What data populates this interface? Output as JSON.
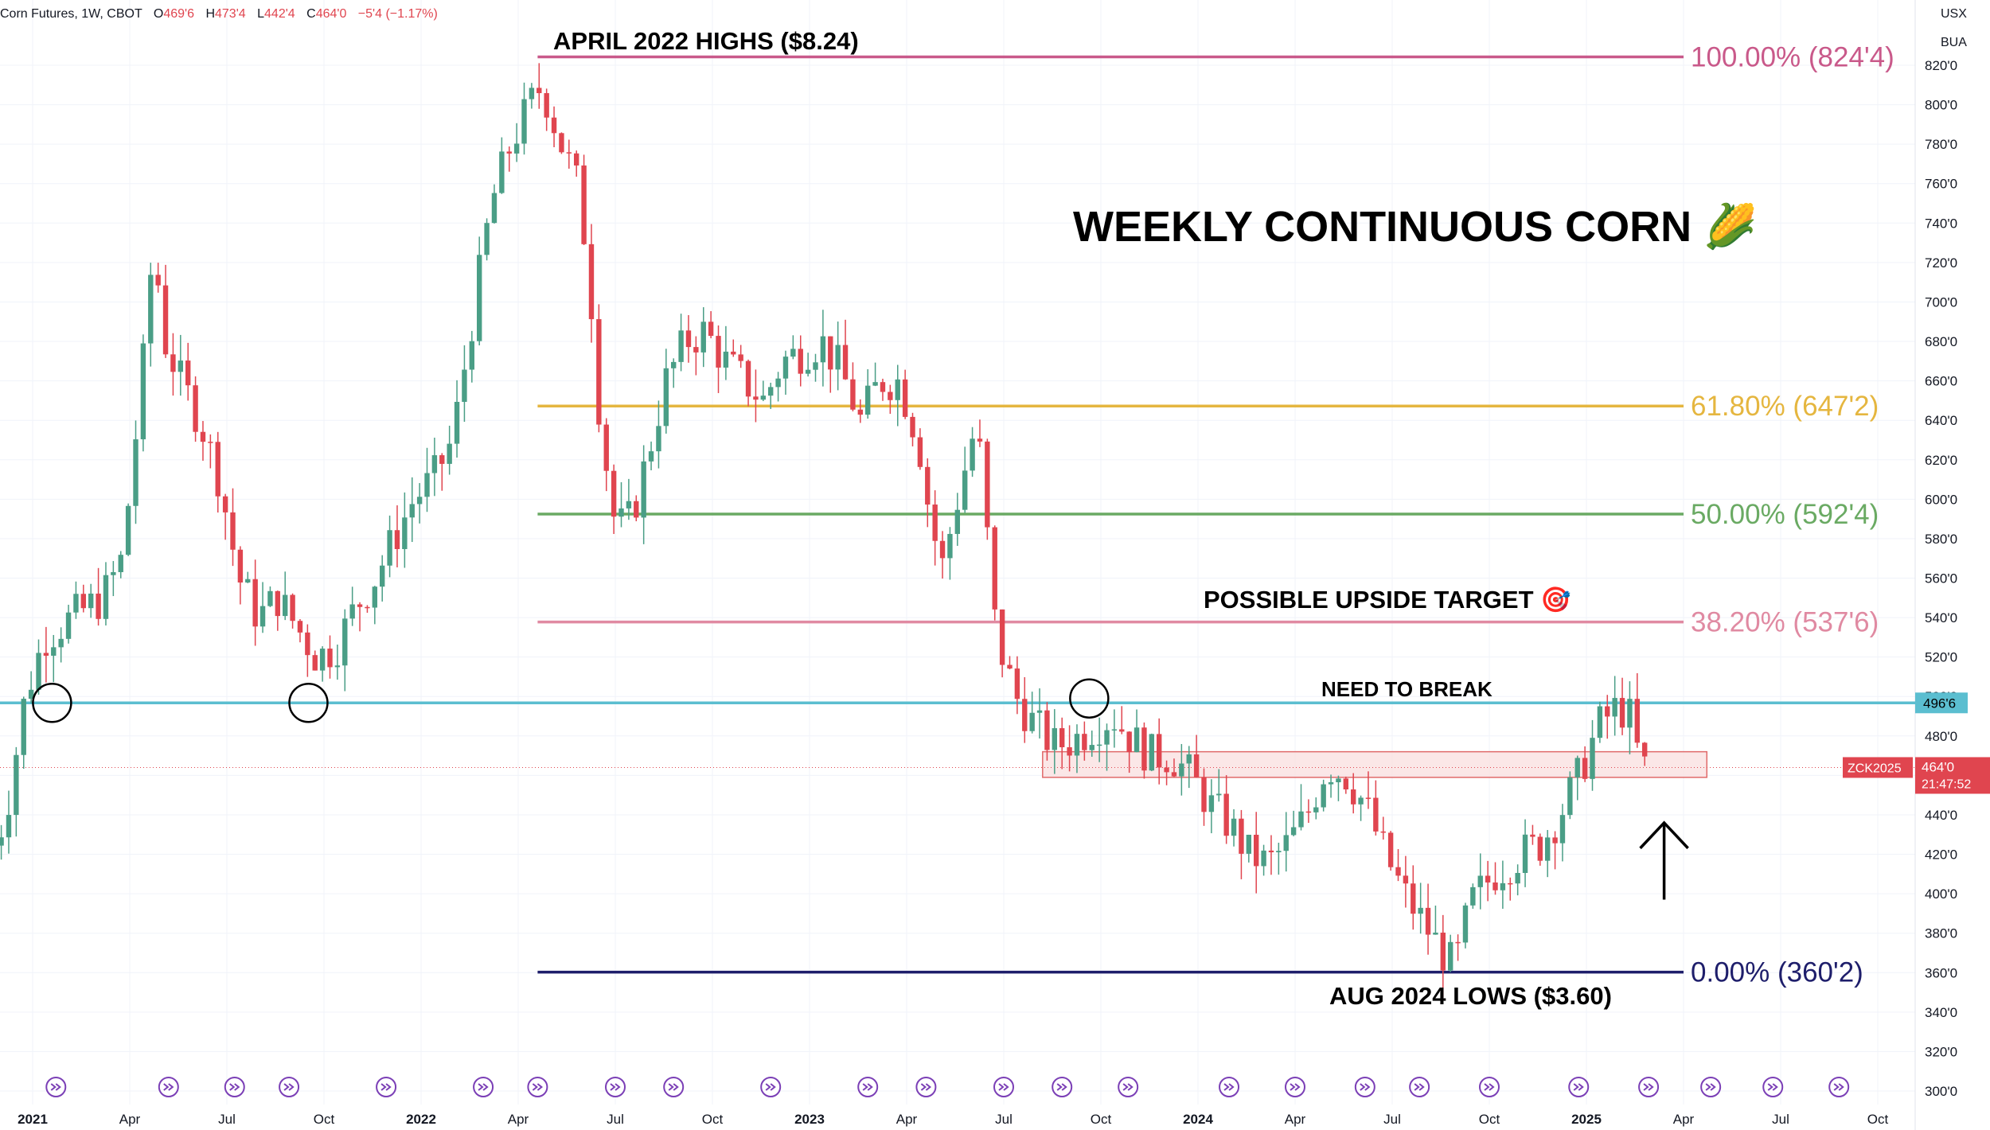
{
  "header": {
    "symbol": "Corn Futures, 1W, CBOT",
    "open_label": "O",
    "open": "469'6",
    "high_label": "H",
    "high": "473'4",
    "low_label": "L",
    "low": "442'4",
    "close_label": "C",
    "close": "464'0",
    "change": "−5'4 (−1.17%)",
    "currency": "USX",
    "unit": "BUA"
  },
  "colors": {
    "up": "#4a9e86",
    "down": "#e0454f",
    "fib_100": "#c9598a",
    "fib_618": "#e5b63f",
    "fib_50": "#6aaa63",
    "fib_382": "#e08aa2",
    "fib_0": "#1e1e6b",
    "resistance": "#5bbed0",
    "zone_fill": "#f9dddd",
    "zone_border": "#e06a6a",
    "price_tag": "#e0454f",
    "event_icon": "#7b3fb6"
  },
  "annotations": {
    "title": "WEEKLY CONTINUOUS CORN 🌽",
    "april_highs": "APRIL 2022 HIGHS ($8.24)",
    "aug_lows": "AUG 2024 LOWS ($3.60)",
    "upside_target": "POSSIBLE UPSIDE TARGET 🎯",
    "need_to_break": "NEED TO BREAK"
  },
  "price_tags": {
    "resistance_value": "496'6",
    "contract": "ZCK2025",
    "last_price": "464'0",
    "countdown": "21:47:52"
  },
  "chart_data": {
    "type": "candlestick",
    "title": "WEEKLY CONTINUOUS CORN",
    "ylim": [
      295,
      840
    ],
    "y_ticks": [
      {
        "v": 820,
        "label": "820'0"
      },
      {
        "v": 800,
        "label": "800'0"
      },
      {
        "v": 780,
        "label": "780'0"
      },
      {
        "v": 760,
        "label": "760'0"
      },
      {
        "v": 740,
        "label": "740'0"
      },
      {
        "v": 720,
        "label": "720'0"
      },
      {
        "v": 700,
        "label": "700'0"
      },
      {
        "v": 680,
        "label": "680'0"
      },
      {
        "v": 660,
        "label": "660'0"
      },
      {
        "v": 640,
        "label": "640'0"
      },
      {
        "v": 620,
        "label": "620'0"
      },
      {
        "v": 600,
        "label": "600'0"
      },
      {
        "v": 580,
        "label": "580'0"
      },
      {
        "v": 560,
        "label": "560'0"
      },
      {
        "v": 540,
        "label": "540'0"
      },
      {
        "v": 520,
        "label": "520'0"
      },
      {
        "v": 500,
        "label": "500'0"
      },
      {
        "v": 480,
        "label": "480'0"
      },
      {
        "v": 460,
        "label": "460'0"
      },
      {
        "v": 440,
        "label": "440'0"
      },
      {
        "v": 420,
        "label": "420'0"
      },
      {
        "v": 400,
        "label": "400'0"
      },
      {
        "v": 380,
        "label": "380'0"
      },
      {
        "v": 360,
        "label": "360'0"
      },
      {
        "v": 340,
        "label": "340'0"
      },
      {
        "v": 320,
        "label": "320'0"
      },
      {
        "v": 300,
        "label": "300'0"
      }
    ],
    "x_ticks": [
      {
        "t": 2021.0,
        "label": "2021",
        "bold": true
      },
      {
        "t": 2021.25,
        "label": "Apr",
        "bold": false
      },
      {
        "t": 2021.5,
        "label": "Jul",
        "bold": false
      },
      {
        "t": 2021.75,
        "label": "Oct",
        "bold": false
      },
      {
        "t": 2022.0,
        "label": "2022",
        "bold": true
      },
      {
        "t": 2022.25,
        "label": "Apr",
        "bold": false
      },
      {
        "t": 2022.5,
        "label": "Jul",
        "bold": false
      },
      {
        "t": 2022.75,
        "label": "Oct",
        "bold": false
      },
      {
        "t": 2023.0,
        "label": "2023",
        "bold": true
      },
      {
        "t": 2023.25,
        "label": "Apr",
        "bold": false
      },
      {
        "t": 2023.5,
        "label": "Jul",
        "bold": false
      },
      {
        "t": 2023.75,
        "label": "Oct",
        "bold": false
      },
      {
        "t": 2024.0,
        "label": "2024",
        "bold": true
      },
      {
        "t": 2024.25,
        "label": "Apr",
        "bold": false
      },
      {
        "t": 2024.5,
        "label": "Jul",
        "bold": false
      },
      {
        "t": 2024.75,
        "label": "Oct",
        "bold": false
      },
      {
        "t": 2025.0,
        "label": "2025",
        "bold": true
      },
      {
        "t": 2025.25,
        "label": "Apr",
        "bold": false
      },
      {
        "t": 2025.5,
        "label": "Jul",
        "bold": false
      },
      {
        "t": 2025.75,
        "label": "Oct",
        "bold": false
      }
    ],
    "price_path": [
      [
        2020.9,
        415
      ],
      [
        2020.95,
        440
      ],
      [
        2021.0,
        500
      ],
      [
        2021.05,
        530
      ],
      [
        2021.12,
        540
      ],
      [
        2021.2,
        550
      ],
      [
        2021.25,
        570
      ],
      [
        2021.3,
        660
      ],
      [
        2021.33,
        730
      ],
      [
        2021.36,
        680
      ],
      [
        2021.4,
        660
      ],
      [
        2021.45,
        640
      ],
      [
        2021.5,
        610
      ],
      [
        2021.55,
        560
      ],
      [
        2021.6,
        540
      ],
      [
        2021.65,
        550
      ],
      [
        2021.7,
        535
      ],
      [
        2021.75,
        520
      ],
      [
        2021.8,
        525
      ],
      [
        2021.85,
        545
      ],
      [
        2021.9,
        560
      ],
      [
        2021.95,
        580
      ],
      [
        2022.0,
        600
      ],
      [
        2022.05,
        610
      ],
      [
        2022.1,
        630
      ],
      [
        2022.15,
        690
      ],
      [
        2022.2,
        750
      ],
      [
        2022.25,
        780
      ],
      [
        2022.3,
        800
      ],
      [
        2022.33,
        810
      ],
      [
        2022.38,
        780
      ],
      [
        2022.42,
        760
      ],
      [
        2022.45,
        720
      ],
      [
        2022.48,
        640
      ],
      [
        2022.52,
        585
      ],
      [
        2022.56,
        590
      ],
      [
        2022.6,
        620
      ],
      [
        2022.65,
        660
      ],
      [
        2022.7,
        680
      ],
      [
        2022.75,
        685
      ],
      [
        2022.8,
        670
      ],
      [
        2022.85,
        660
      ],
      [
        2022.9,
        650
      ],
      [
        2022.95,
        670
      ],
      [
        2023.0,
        675
      ],
      [
        2023.05,
        680
      ],
      [
        2023.1,
        665
      ],
      [
        2023.15,
        640
      ],
      [
        2023.2,
        660
      ],
      [
        2023.25,
        660
      ],
      [
        2023.3,
        630
      ],
      [
        2023.33,
        590
      ],
      [
        2023.36,
        565
      ],
      [
        2023.4,
        600
      ],
      [
        2023.45,
        640
      ],
      [
        2023.5,
        530
      ],
      [
        2023.55,
        500
      ],
      [
        2023.6,
        485
      ],
      [
        2023.65,
        475
      ],
      [
        2023.7,
        478
      ],
      [
        2023.75,
        485
      ],
      [
        2023.8,
        490
      ],
      [
        2023.85,
        478
      ],
      [
        2023.9,
        470
      ],
      [
        2023.95,
        470
      ],
      [
        2024.0,
        460
      ],
      [
        2024.05,
        445
      ],
      [
        2024.1,
        435
      ],
      [
        2024.15,
        420
      ],
      [
        2024.2,
        415
      ],
      [
        2024.25,
        425
      ],
      [
        2024.3,
        440
      ],
      [
        2024.35,
        465
      ],
      [
        2024.4,
        460
      ],
      [
        2024.45,
        445
      ],
      [
        2024.5,
        420
      ],
      [
        2024.55,
        400
      ],
      [
        2024.6,
        385
      ],
      [
        2024.65,
        370
      ],
      [
        2024.68,
        362
      ],
      [
        2024.72,
        395
      ],
      [
        2024.78,
        410
      ],
      [
        2024.85,
        420
      ],
      [
        2024.9,
        425
      ],
      [
        2024.95,
        440
      ],
      [
        2025.0,
        460
      ],
      [
        2025.05,
        485
      ],
      [
        2025.1,
        495
      ],
      [
        2025.13,
        490
      ],
      [
        2025.16,
        464
      ]
    ],
    "fib_levels": [
      {
        "value": 824.25,
        "label": "100.00% (824'4)",
        "color_key": "fib_100"
      },
      {
        "value": 647.25,
        "label": "61.80% (647'2)",
        "color_key": "fib_618"
      },
      {
        "value": 592.5,
        "label": "50.00% (592'4)",
        "color_key": "fib_50"
      },
      {
        "value": 537.75,
        "label": "38.20% (537'6)",
        "color_key": "fib_382"
      },
      {
        "value": 360.25,
        "label": "0.00% (360'2)",
        "color_key": "fib_0"
      }
    ],
    "fib_start": 2022.3,
    "fib_end": 2025.25,
    "resistance": 496.75,
    "zone": {
      "x0": 2023.6,
      "x1": 2025.31,
      "y0": 459,
      "y1": 472
    },
    "last_price": 464,
    "circles": [
      {
        "t": 2021.05,
        "v": 496.75
      },
      {
        "t": 2021.71,
        "v": 496.75
      },
      {
        "t": 2023.72,
        "v": 499
      }
    ],
    "arrow": {
      "t": 2025.2,
      "from": 397,
      "to": 436
    },
    "grid": true
  }
}
